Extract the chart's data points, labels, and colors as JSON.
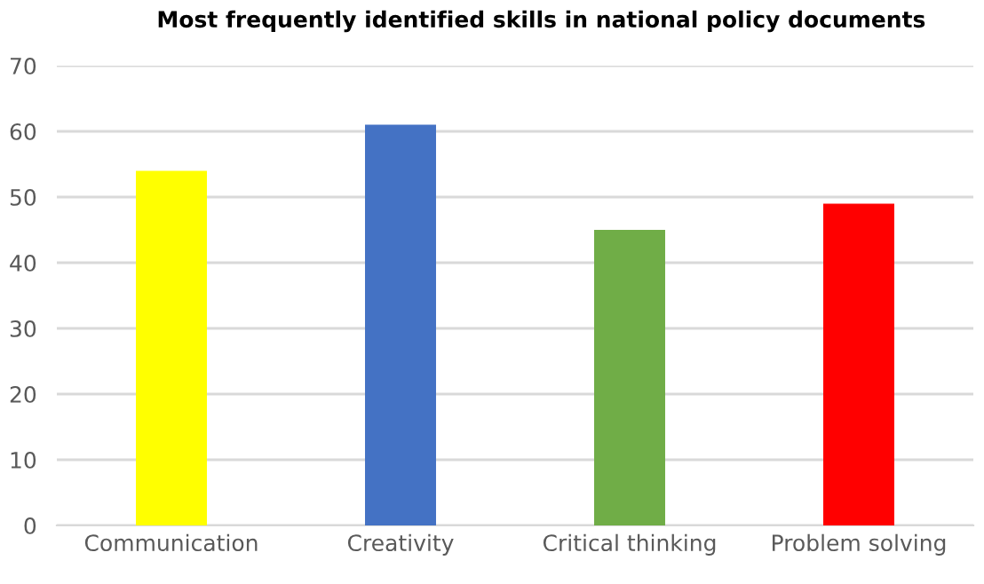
{
  "chart_data": {
    "type": "bar",
    "title": "Most frequently identified skills in national policy documents",
    "categories": [
      "Communication",
      "Creativity",
      "Critical thinking",
      "Problem solving"
    ],
    "values": [
      54,
      61,
      45,
      49
    ],
    "colors": [
      "#ffff00",
      "#4472c4",
      "#70ad47",
      "#ff0000"
    ],
    "ylim": [
      0,
      70
    ],
    "yticks": [
      0,
      10,
      20,
      30,
      40,
      50,
      60,
      70
    ],
    "grid": "y"
  }
}
